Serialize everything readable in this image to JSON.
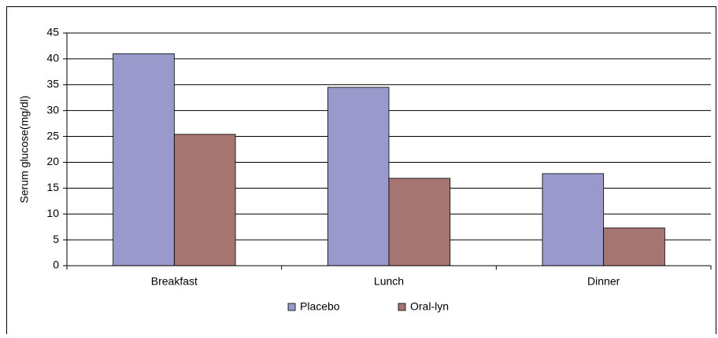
{
  "chart_data": {
    "type": "bar",
    "y_label": "Serum glucose(mg/dl)",
    "categories": [
      "Breakfast",
      "Lunch",
      "Dinner"
    ],
    "series": [
      {
        "name": "Placebo",
        "color": "#9999cc",
        "values": [
          41,
          34.5,
          17.8
        ]
      },
      {
        "name": "Oral-lyn",
        "color": "#a47571",
        "values": [
          25.4,
          16.9,
          7.3
        ]
      }
    ],
    "ylim": [
      0,
      45
    ],
    "yticks": [
      0,
      5,
      10,
      15,
      20,
      25,
      30,
      35,
      40,
      45
    ],
    "grid": true,
    "legend": "bottom"
  }
}
